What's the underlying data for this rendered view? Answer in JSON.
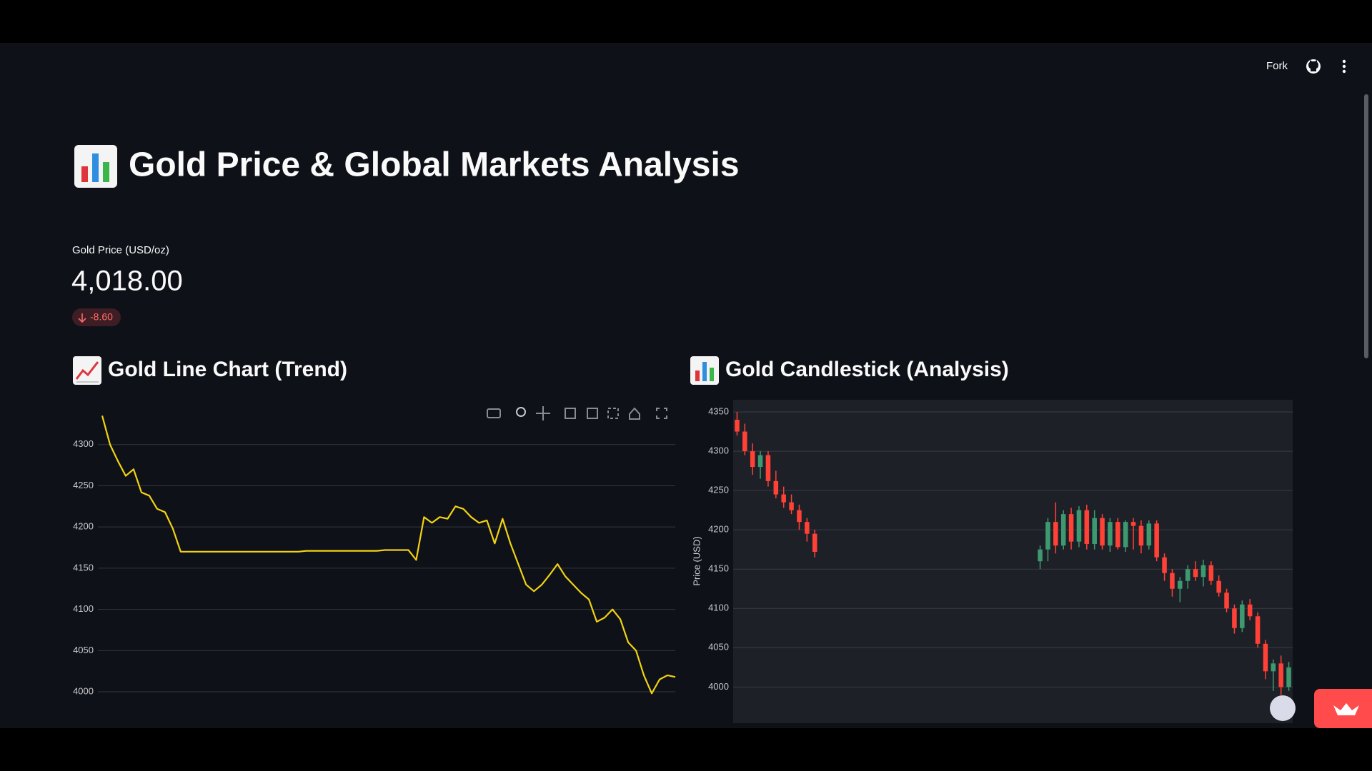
{
  "header": {
    "fork": "Fork"
  },
  "title": "Gold Price & Global Markets Analysis",
  "metric": {
    "label": "Gold Price (USD/oz)",
    "value": "4,018.00",
    "delta": "-8.60"
  },
  "chart_data": [
    {
      "type": "line",
      "title": "Gold Line Chart (Trend)",
      "color": "#f2d313",
      "values": [
        4335,
        4300,
        4280,
        4262,
        4270,
        4242,
        4238,
        4222,
        4218,
        4198,
        4170,
        4170,
        4170,
        4170,
        4170,
        4170,
        4170,
        4170,
        4170,
        4170,
        4170,
        4170,
        4170,
        4170,
        4170,
        4170,
        4171,
        4171,
        4171,
        4171,
        4171,
        4171,
        4171,
        4171,
        4171,
        4171,
        4172,
        4172,
        4172,
        4172,
        4160,
        4212,
        4205,
        4212,
        4210,
        4225,
        4222,
        4212,
        4205,
        4208,
        4180,
        4210,
        4180,
        4155,
        4130,
        4122,
        4130,
        4142,
        4155,
        4140,
        4130,
        4120,
        4112,
        4085,
        4090,
        4100,
        4088,
        4060,
        4050,
        4020,
        3998,
        4015,
        4020,
        4018
      ],
      "ylim": [
        3955,
        4350
      ],
      "yticks": [
        4000,
        4050,
        4100,
        4150,
        4200,
        4250,
        4300
      ],
      "grid": true
    },
    {
      "type": "candlestick",
      "title": "Gold Candlestick (Analysis)",
      "y_label": "Price (USD)",
      "increasing_color": "#3d9970",
      "decreasing_color": "#ff4136",
      "open": [
        4340,
        4325,
        4300,
        4280,
        4295,
        4262,
        4245,
        4235,
        4225,
        4210,
        4195,
        null,
        null,
        null,
        null,
        null,
        null,
        null,
        null,
        null,
        null,
        null,
        null,
        null,
        null,
        null,
        null,
        null,
        null,
        null,
        null,
        null,
        null,
        null,
        null,
        null,
        null,
        null,
        null,
        4160,
        4175,
        4210,
        4180,
        4220,
        4185,
        4225,
        4182,
        4215,
        4180,
        4210,
        4178,
        4210,
        4205,
        4180,
        4208,
        4165,
        4145,
        4125,
        4135,
        4150,
        4140,
        4155,
        4135,
        4120,
        4100,
        4075,
        4105,
        4090,
        4055,
        4020,
        4030,
        4000
      ],
      "high": [
        4350,
        4335,
        4310,
        4300,
        4300,
        4275,
        4255,
        4245,
        4232,
        4215,
        4200,
        null,
        null,
        null,
        null,
        null,
        null,
        null,
        null,
        null,
        null,
        null,
        null,
        null,
        null,
        null,
        null,
        null,
        null,
        null,
        null,
        null,
        null,
        null,
        null,
        null,
        null,
        null,
        null,
        4180,
        4215,
        4235,
        4225,
        4228,
        4230,
        4232,
        4225,
        4220,
        4215,
        4215,
        4212,
        4215,
        4212,
        4212,
        4212,
        4170,
        4150,
        4140,
        4155,
        4160,
        4162,
        4160,
        4142,
        4125,
        4105,
        4110,
        4112,
        4095,
        4060,
        4035,
        4040,
        4032
      ],
      "low": [
        4320,
        4295,
        4270,
        4265,
        4255,
        4240,
        4228,
        4220,
        4200,
        4185,
        4165,
        null,
        null,
        null,
        null,
        null,
        null,
        null,
        null,
        null,
        null,
        null,
        null,
        null,
        null,
        null,
        null,
        null,
        null,
        null,
        null,
        null,
        null,
        null,
        null,
        null,
        null,
        null,
        null,
        4150,
        4160,
        4170,
        4175,
        4175,
        4178,
        4175,
        4175,
        4175,
        4172,
        4175,
        4172,
        4175,
        4170,
        4175,
        4160,
        4135,
        4115,
        4108,
        4125,
        4135,
        4128,
        4130,
        4115,
        4095,
        4068,
        4070,
        4085,
        4050,
        4010,
        3995,
        3990,
        3995
      ],
      "close": [
        4325,
        4300,
        4280,
        4295,
        4262,
        4245,
        4235,
        4225,
        4210,
        4195,
        4172,
        null,
        null,
        null,
        null,
        null,
        null,
        null,
        null,
        null,
        null,
        null,
        null,
        null,
        null,
        null,
        null,
        null,
        null,
        null,
        null,
        null,
        null,
        null,
        null,
        null,
        null,
        null,
        null,
        4175,
        4210,
        4180,
        4220,
        4185,
        4225,
        4182,
        4215,
        4180,
        4210,
        4178,
        4210,
        4205,
        4180,
        4208,
        4165,
        4145,
        4125,
        4135,
        4150,
        4140,
        4155,
        4135,
        4120,
        4100,
        4075,
        4105,
        4090,
        4055,
        4020,
        4030,
        4000,
        4025
      ],
      "ylim": [
        3954,
        4365
      ],
      "yticks": [
        4000,
        4050,
        4100,
        4150,
        4200,
        4250,
        4300,
        4350
      ],
      "grid": true
    }
  ]
}
